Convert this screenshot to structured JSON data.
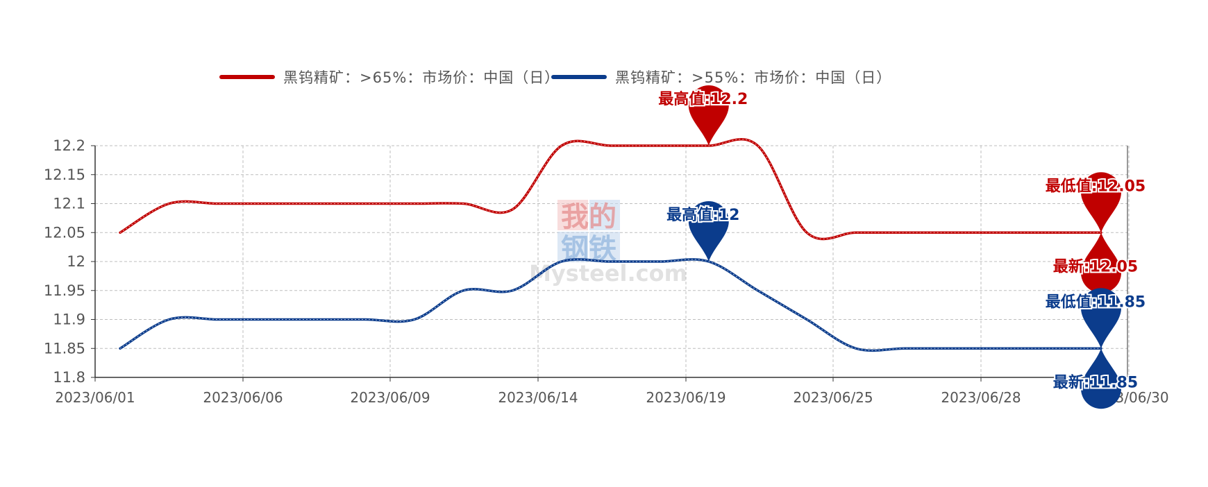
{
  "chart_data": {
    "type": "line",
    "x": [
      "2023/06/01",
      "2023/06/02",
      "2023/06/05",
      "2023/06/06",
      "2023/06/07",
      "2023/06/08",
      "2023/06/09",
      "2023/06/12",
      "2023/06/13",
      "2023/06/14",
      "2023/06/15",
      "2023/06/16",
      "2023/06/19",
      "2023/06/20",
      "2023/06/21",
      "2023/06/25",
      "2023/06/26",
      "2023/06/27",
      "2023/06/28",
      "2023/06/29",
      "2023/06/30"
    ],
    "x_tick_labels": [
      "2023/06/01",
      "2023/06/06",
      "2023/06/09",
      "2023/06/14",
      "2023/06/19",
      "2023/06/25",
      "2023/06/28",
      "2023/06/30"
    ],
    "series": [
      {
        "name": "黑钨精矿：>65%：市场价：中国（日）",
        "color": "#c00000",
        "values": [
          12.05,
          12.1,
          12.1,
          12.1,
          12.1,
          12.1,
          12.1,
          12.1,
          12.09,
          12.2,
          12.2,
          12.2,
          12.2,
          12.2,
          12.05,
          12.05,
          12.05,
          12.05,
          12.05,
          12.05,
          12.05
        ]
      },
      {
        "name": "黑钨精矿：>55%：市场价：中国（日）",
        "color": "#0b3c8c",
        "values": [
          11.85,
          11.9,
          11.9,
          11.9,
          11.9,
          11.9,
          11.9,
          11.95,
          11.95,
          12.0,
          12.0,
          12.0,
          12.0,
          11.95,
          11.9,
          11.85,
          11.85,
          11.85,
          11.85,
          11.85,
          11.85
        ]
      }
    ],
    "y_ticks": [
      "12.2",
      "12.15",
      "12.1",
      "12.05",
      "12",
      "11.95",
      "11.9",
      "11.85",
      "11.8"
    ],
    "ylim": [
      11.8,
      12.2
    ],
    "grid": true,
    "legend_position": "top-center",
    "markers": [
      {
        "series": 0,
        "label": "最高值:12.2",
        "x": "2023/06/19",
        "value": 12.2
      },
      {
        "series": 0,
        "label": "最低值:12.05",
        "x": "2023/06/30",
        "value": 12.05
      },
      {
        "series": 0,
        "label": "最新:12.05",
        "x": "2023/06/30",
        "value": 12.05,
        "pointing": "up"
      },
      {
        "series": 1,
        "label": "最高值:12",
        "x": "2023/06/19",
        "value": 12.0
      },
      {
        "series": 1,
        "label": "最低值:11.85",
        "x": "2023/06/30",
        "value": 11.85
      },
      {
        "series": 1,
        "label": "最新:11.85",
        "x": "2023/06/30",
        "value": 11.85,
        "pointing": "up"
      }
    ]
  },
  "watermark": {
    "cn_top": "我的",
    "cn_bottom": "钢铁",
    "en": "Mysteel.com"
  }
}
